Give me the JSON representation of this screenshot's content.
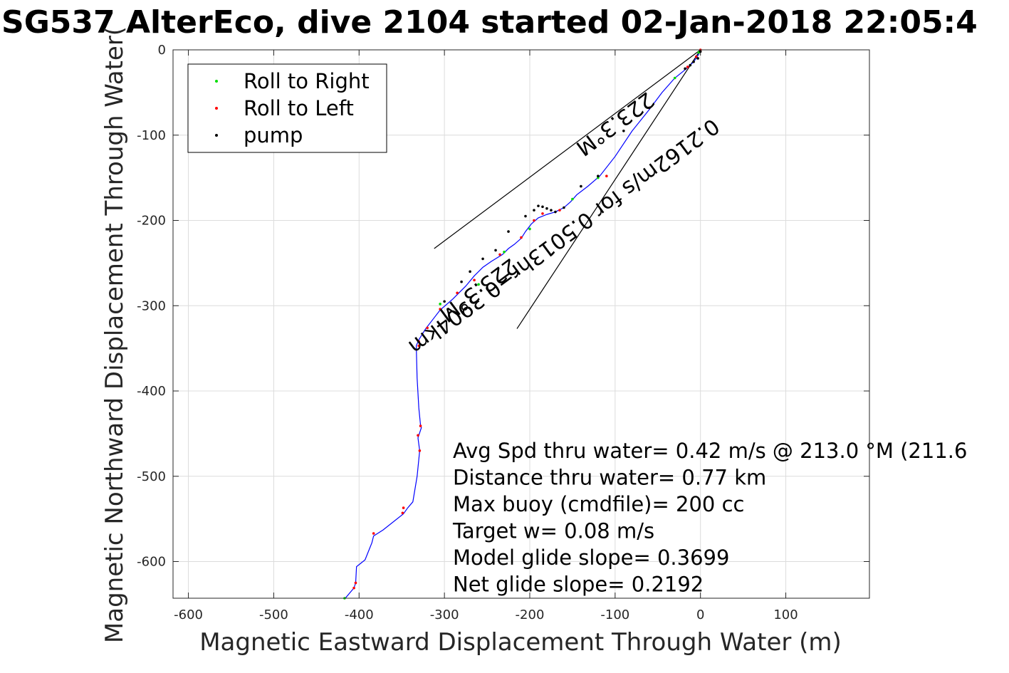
{
  "chart_data": {
    "type": "line",
    "title": "SG537 AlterEco, dive 2104 started 02-Jan-2018 22:05:4",
    "xlabel": "Magnetic Eastward Displacement Through Water (m)",
    "ylabel": "Magnetic Northward Displacement Through Water(",
    "xlim": [
      -618,
      198
    ],
    "ylim": [
      -643,
      0
    ],
    "xticks": [
      -600,
      -500,
      -400,
      -300,
      -200,
      -100,
      0,
      100
    ],
    "yticks": [
      0,
      -100,
      -200,
      -300,
      -400,
      -500,
      -600
    ],
    "grid": true,
    "legend_placement": "top-left",
    "series": [
      {
        "name": "track",
        "color": "#0000ff",
        "x": [
          0,
          -2,
          -5,
          -8,
          -12,
          -20,
          -30,
          -45,
          -60,
          -80,
          -100,
          -118,
          -132,
          -145,
          -152,
          -160,
          -170,
          -180,
          -190,
          -198,
          -205,
          -210,
          -218,
          -225,
          -232,
          -245,
          -255,
          -265,
          -275,
          -290,
          -305,
          -315,
          -322,
          -330,
          -333,
          -332,
          -330,
          -328,
          -327,
          -331,
          -329,
          -332,
          -337,
          -343,
          -348,
          -372,
          -383,
          -385,
          -393,
          -403,
          -404,
          -406,
          -417
        ],
        "y": [
          0,
          -5,
          -10,
          -14,
          -18,
          -25,
          -33,
          -50,
          -70,
          -95,
          -125,
          -148,
          -160,
          -170,
          -178,
          -185,
          -190,
          -193,
          -197,
          -204,
          -213,
          -221,
          -228,
          -233,
          -240,
          -248,
          -255,
          -265,
          -277,
          -292,
          -305,
          -318,
          -327,
          -340,
          -347,
          -385,
          -420,
          -440,
          -443,
          -455,
          -470,
          -500,
          -530,
          -537,
          -544,
          -563,
          -570,
          -578,
          -598,
          -606,
          -625,
          -631,
          -644
        ]
      }
    ],
    "markers": [
      {
        "name": "Roll to Right",
        "color": "#00dd00",
        "x": [
          -2,
          -12,
          -30,
          -120,
          -150,
          -200,
          -230,
          -260,
          -305,
          -417
        ],
        "y": [
          -3,
          -18,
          -33,
          -150,
          -175,
          -210,
          -237,
          -275,
          -298,
          -643
        ]
      },
      {
        "name": "Roll to Left",
        "color": "#ff0000",
        "x": [
          0,
          -5,
          -15,
          -60,
          -110,
          -165,
          -185,
          -195,
          -210,
          -235,
          -265,
          -285,
          -305,
          -320,
          -330,
          -330,
          -331,
          -328,
          -329,
          -348,
          -349,
          -383,
          -404,
          -406
        ],
        "y": [
          0,
          -8,
          -20,
          -68,
          -148,
          -188,
          -192,
          -200,
          -220,
          -240,
          -270,
          -285,
          -304,
          -326,
          -342,
          -347,
          -452,
          -441,
          -470,
          -537,
          -543,
          -567,
          -625,
          -631
        ]
      },
      {
        "name": "pump",
        "color": "#000000",
        "x": [
          0,
          -3,
          -8,
          -12,
          -18,
          -60,
          -90,
          -120,
          -140,
          -160,
          -170,
          -175,
          -180,
          -185,
          -190,
          -195,
          -205,
          -225,
          -240,
          -255,
          -270,
          -280,
          -300
        ],
        "y": [
          -2,
          -10,
          -14,
          -18,
          -22,
          -68,
          -95,
          -148,
          -160,
          -185,
          -190,
          -188,
          -186,
          -184,
          -183,
          -188,
          -195,
          -213,
          -235,
          -245,
          -260,
          -272,
          -295
        ]
      }
    ],
    "bearing_lines": [
      {
        "x": [
          0,
          -312
        ],
        "y": [
          0,
          -233
        ]
      },
      {
        "x": [
          0,
          -215
        ],
        "y": [
          0,
          -327
        ]
      }
    ],
    "rotated_labels": [
      {
        "text": "223.3°M",
        "x": -265,
        "y": -275
      },
      {
        "text": "223.3°M",
        "x": -105,
        "y": -80
      },
      {
        "text": "0.2162m/s for 0.5013hr=0.3904km",
        "x": -165,
        "y": -212
      }
    ],
    "legend": [
      "Roll to Right",
      "Roll to Left",
      "pump"
    ],
    "annotations": [
      "Avg Spd thru water=  0.42 m/s @ 213.0 °M (211.6",
      "Distance thru water=  0.77 km",
      "Max buoy (cmdfile)= 200 cc",
      "Target w= 0.08 m/s",
      "Model glide slope= 0.3699",
      "Net glide slope= 0.2192"
    ]
  }
}
